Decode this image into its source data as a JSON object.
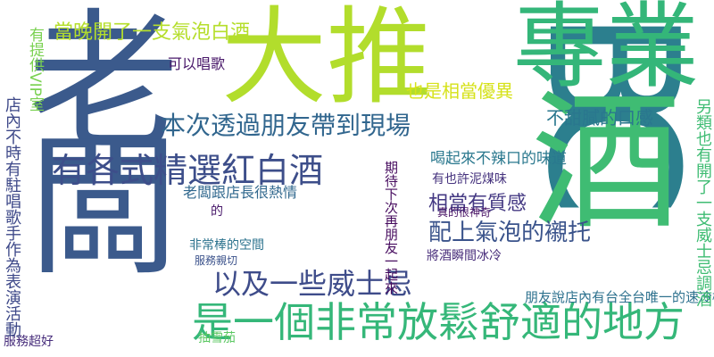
{
  "cloud": {
    "words": [
      {
        "text": "BC",
        "color": "#2c7f8e"
      },
      {
        "text": "老闆",
        "color": "#3b5a8c"
      },
      {
        "text": "專業",
        "color": "#34b679"
      },
      {
        "text": "大推",
        "color": "#b2dd2c"
      },
      {
        "text": "酒",
        "color": "#3fbc73"
      },
      {
        "text": "是一個非常放鬆舒適的地方",
        "color": "#35b779"
      },
      {
        "text": "有各式精選紅白酒",
        "color": "#3d4e8a"
      },
      {
        "text": "本次透過朋友帶到現場",
        "color": "#31668e"
      },
      {
        "text": "以及一些威士忌",
        "color": "#3e4c8a"
      },
      {
        "text": "配上氣泡的襯托",
        "color": "#3a538b"
      },
      {
        "text": "當晚開了一支氣泡白酒",
        "color": "#b5de2b"
      },
      {
        "text": "也是相當優異",
        "color": "#d6e21a"
      },
      {
        "text": "不甜膩的口感",
        "color": "#2a778e"
      },
      {
        "text": "相當有質感",
        "color": "#443983"
      },
      {
        "text": "可以唱歌",
        "color": "#481769"
      },
      {
        "text": "老闆跟店長很熱情",
        "color": "#31688e"
      },
      {
        "text": "喝起來不辣口的味道",
        "color": "#2a788e"
      },
      {
        "text": "朋友說店內有台全台唯一的速冷機",
        "color": "#2d718e"
      },
      {
        "text": "非常棒的空間",
        "color": "#2c738e"
      },
      {
        "text": "服務超好",
        "color": "#472d7b"
      },
      {
        "text": "抽雪茄",
        "color": "#5cc863"
      },
      {
        "text": "有也許泥煤味",
        "color": "#46337e"
      },
      {
        "text": "將酒瞬間冰冷",
        "color": "#472c7a"
      },
      {
        "text": "真的很神奇",
        "color": "#471164"
      },
      {
        "text": "另類也有開了一支威士忌調酒",
        "color": "#3fbc73"
      },
      {
        "text": "店內不時有駐唱歌手作為表演活動",
        "color": "#3e4989"
      },
      {
        "text": "有提供VIP室",
        "color": "#7ad151"
      },
      {
        "text": "期待下次再朋友一起來",
        "color": "#460b5e"
      },
      {
        "text": "服務親切",
        "color": "#3b528b"
      },
      {
        "text": "的",
        "color": "#48186a"
      }
    ]
  }
}
